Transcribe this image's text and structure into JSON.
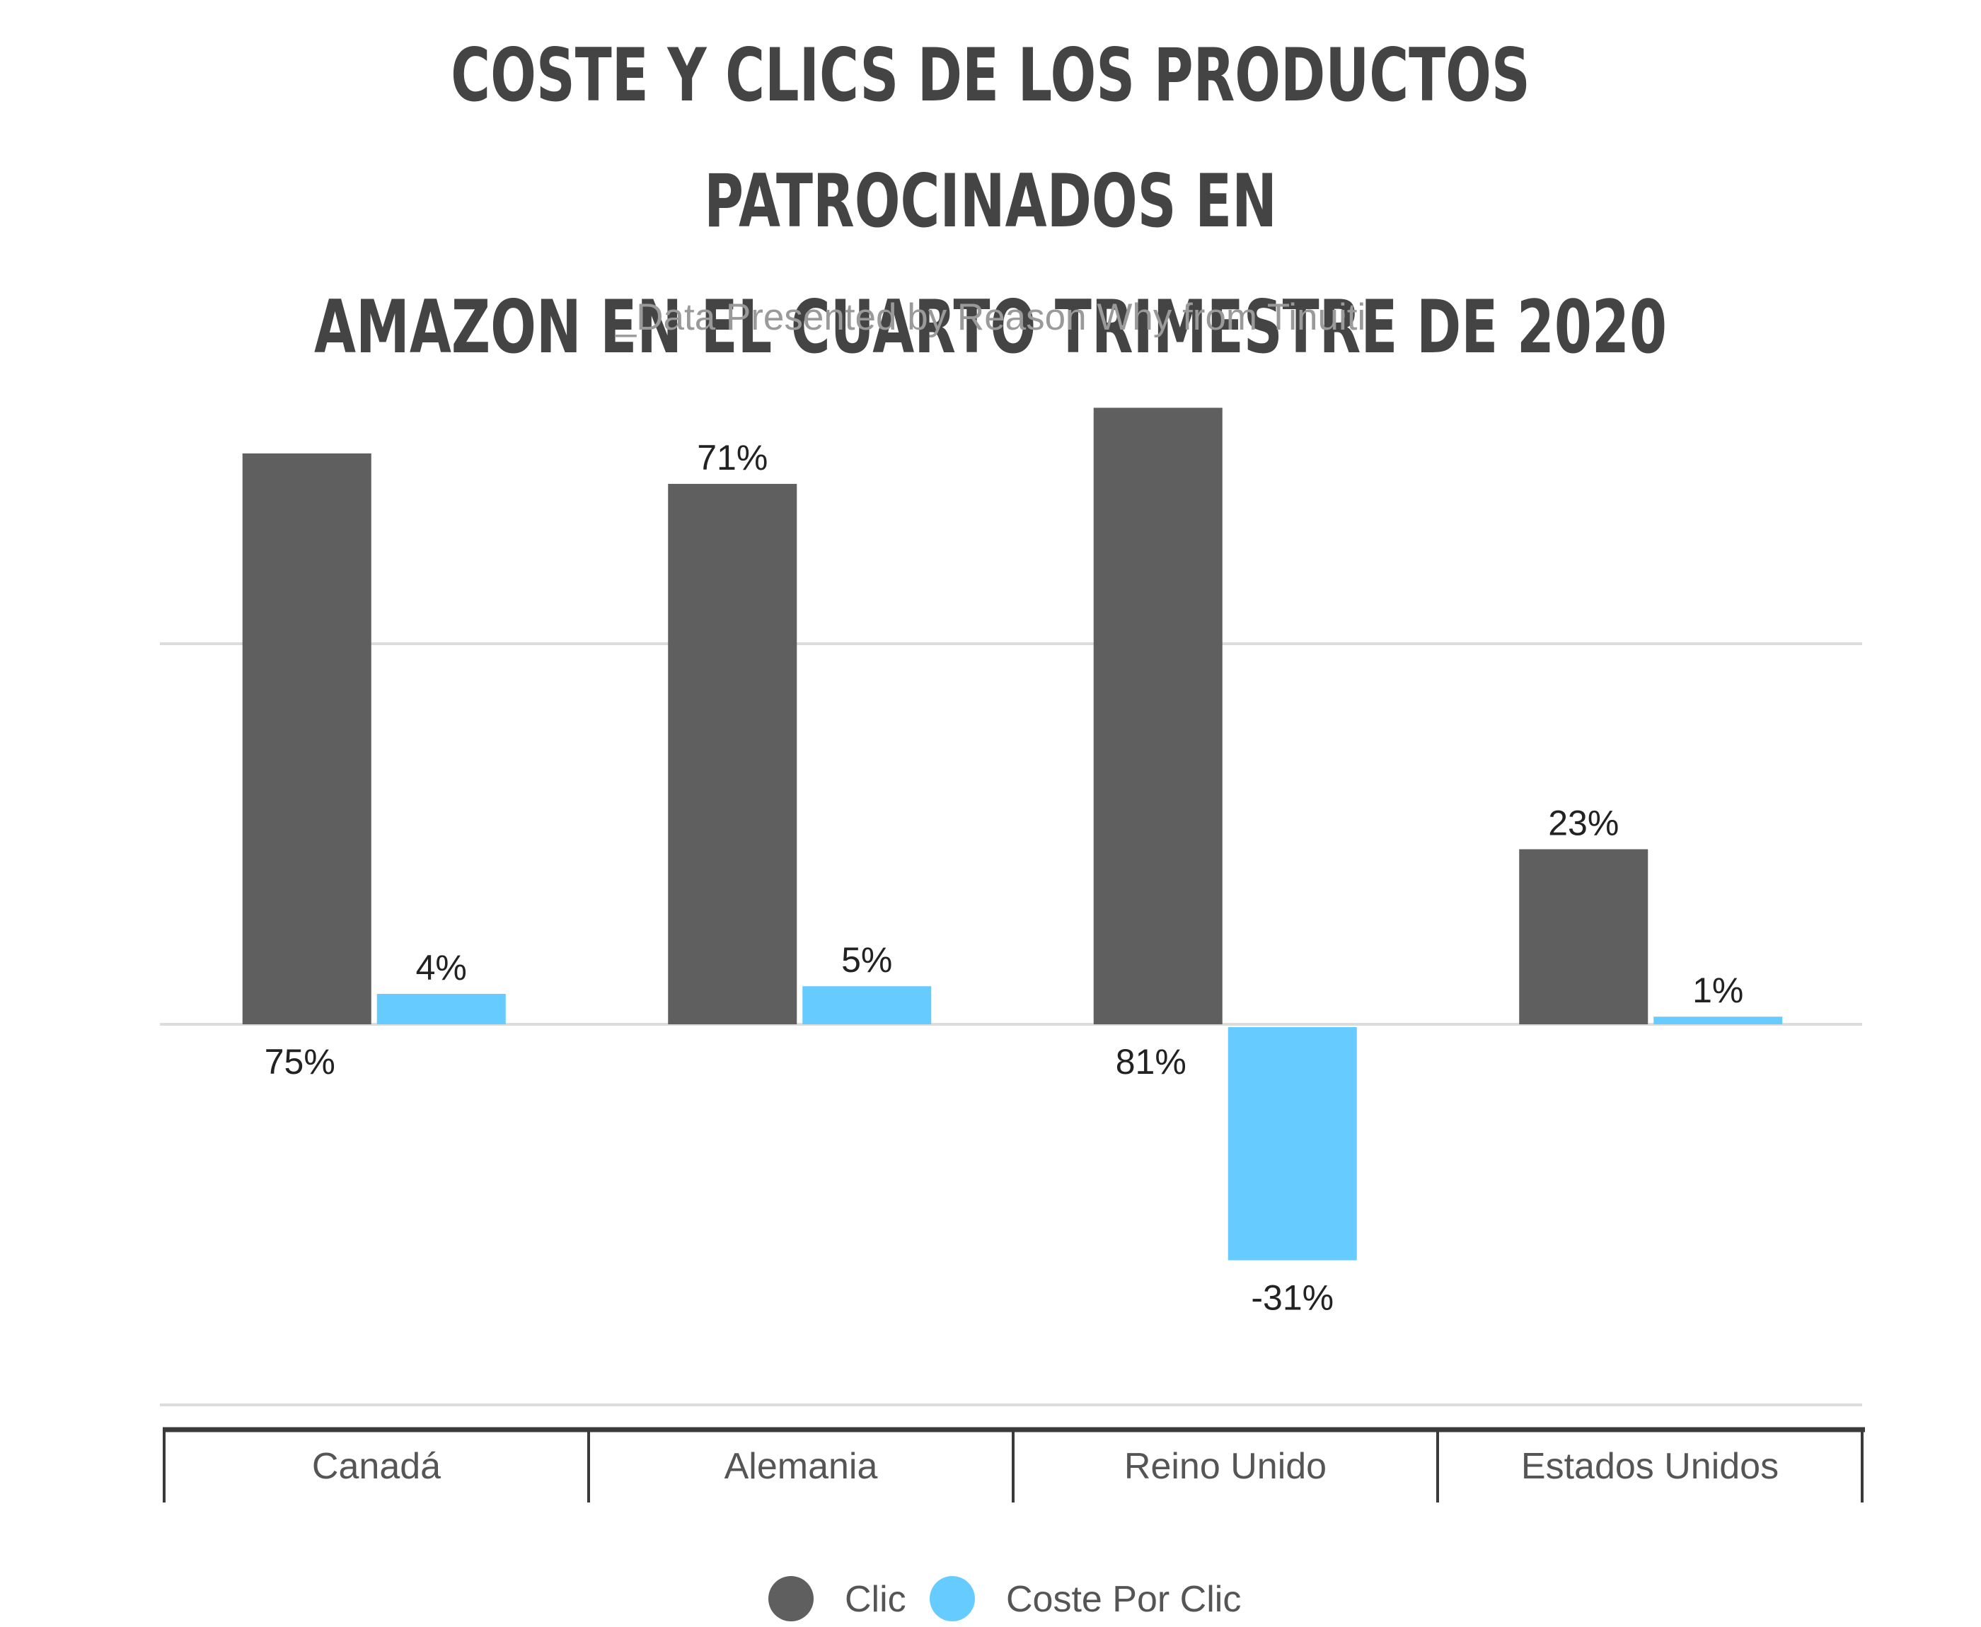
{
  "chart_data": {
    "type": "bar",
    "title": "COSTE Y CLICS DE LOS PRODUCTOS PATROCINADOS EN\nAMAZON EN EL CUARTO TRIMESTRE DE 2020",
    "subtitle": "_Data Presented by Reason Why from Tinuiti",
    "categories": [
      "Canadá",
      "Alemania",
      "Reino Unido",
      "Estados Unidos"
    ],
    "series": [
      {
        "name": "Clic",
        "color": "#5f5f5f",
        "values": [
          75,
          71,
          81,
          23
        ],
        "labels": [
          "75%",
          "71%",
          "81%",
          "23%"
        ],
        "label_position": [
          "below-axis",
          "above",
          "below-axis",
          "above"
        ]
      },
      {
        "name": "Coste Por Clic",
        "color": "#66ccff",
        "values": [
          4,
          5,
          -31,
          1
        ],
        "labels": [
          "4%",
          "5%",
          "-31%",
          "1%"
        ],
        "label_position": [
          "above",
          "above",
          "below",
          "above"
        ]
      }
    ],
    "ylim": [
      -50,
      90
    ],
    "gridlines": [
      50,
      0,
      -50
    ],
    "grid": true,
    "legend": "bottom-center"
  }
}
